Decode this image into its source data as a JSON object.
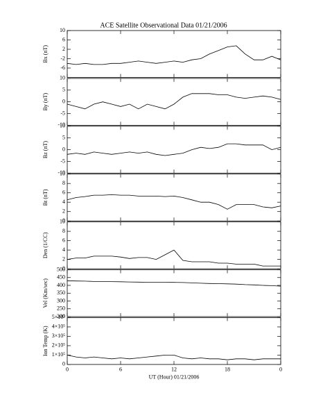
{
  "chart_data": [
    {
      "type": "line",
      "title": "ACE Satellite Observational Data   01/21/2006",
      "ylabel": "Bx (nT)",
      "color": "#000000",
      "x": [
        0,
        1,
        2,
        3,
        4,
        5,
        6,
        7,
        8,
        9,
        10,
        11,
        12,
        13,
        14,
        15,
        16,
        17,
        18,
        19,
        20,
        21,
        22,
        23,
        24
      ],
      "xlim": [
        0,
        24
      ],
      "values": [
        -4,
        -4.5,
        -4,
        -4.5,
        -4.5,
        -4,
        -4,
        -3.5,
        -3,
        -3.5,
        -4,
        -3.5,
        -3,
        -3.5,
        -2.5,
        -2,
        0,
        1.5,
        3,
        3.5,
        0,
        -2.5,
        -2.5,
        -1,
        -2.5
      ],
      "ylim": [
        -10,
        10
      ],
      "yticks": [
        -6,
        -2,
        2,
        6,
        10
      ]
    },
    {
      "type": "line",
      "ylabel": "By (nT)",
      "color": "#000000",
      "x": [
        0,
        1,
        2,
        3,
        4,
        5,
        6,
        7,
        8,
        9,
        10,
        11,
        12,
        13,
        14,
        15,
        16,
        17,
        18,
        19,
        20,
        21,
        22,
        23,
        24
      ],
      "xlim": [
        0,
        24
      ],
      "values": [
        -1,
        -2,
        -3,
        -1,
        0,
        -1,
        -2,
        -1,
        -3,
        -1,
        -2,
        -3,
        -1,
        2,
        3.5,
        3.5,
        3.5,
        3,
        3,
        2,
        1.5,
        2,
        2.5,
        2,
        1
      ],
      "ylim": [
        -10,
        10
      ],
      "yticks": [
        -10,
        -5,
        0,
        5,
        10
      ]
    },
    {
      "type": "line",
      "ylabel": "Bz (nT)",
      "color": "#000000",
      "x": [
        0,
        1,
        2,
        3,
        4,
        5,
        6,
        7,
        8,
        9,
        10,
        11,
        12,
        13,
        14,
        15,
        16,
        17,
        18,
        19,
        20,
        21,
        22,
        23,
        24
      ],
      "xlim": [
        0,
        24
      ],
      "values": [
        -2,
        -1.5,
        -2,
        -1,
        -1.5,
        -2,
        -1.5,
        -1,
        -1.5,
        -1,
        -2,
        -2.5,
        -2,
        -1.5,
        0,
        1,
        0.5,
        1,
        2.5,
        2.5,
        2,
        2,
        2,
        0,
        1
      ],
      "ylim": [
        -10,
        10
      ],
      "yticks": [
        -10,
        -5,
        0,
        5,
        10
      ]
    },
    {
      "type": "line",
      "ylabel": "Bt (nT)",
      "color": "#000000",
      "x": [
        0,
        1,
        2,
        3,
        4,
        5,
        6,
        7,
        8,
        9,
        10,
        11,
        12,
        13,
        14,
        15,
        16,
        17,
        18,
        19,
        20,
        21,
        22,
        23,
        24
      ],
      "xlim": [
        0,
        24
      ],
      "values": [
        4.5,
        5,
        5.2,
        5.5,
        5.5,
        5.6,
        5.5,
        5.5,
        5.3,
        5.3,
        5.3,
        5.2,
        5.3,
        5,
        4.5,
        4,
        4,
        3.5,
        2.5,
        3.5,
        3.5,
        3.5,
        3,
        2.8,
        3.2
      ],
      "ylim": [
        0,
        10
      ],
      "yticks": [
        0,
        2,
        4,
        6,
        8,
        10
      ]
    },
    {
      "type": "line",
      "ylabel": "Den (1/CC)",
      "color": "#000000",
      "x": [
        0,
        1,
        2,
        3,
        4,
        5,
        6,
        7,
        8,
        9,
        10,
        11,
        12,
        13,
        14,
        15,
        16,
        17,
        18,
        19,
        20,
        21,
        22,
        23,
        24
      ],
      "xlim": [
        0,
        24
      ],
      "values": [
        2,
        2.3,
        2.3,
        2.7,
        2.7,
        2.7,
        2.5,
        2.2,
        2.4,
        2.4,
        2,
        3,
        4,
        1.8,
        1.5,
        1.5,
        1.5,
        1.2,
        1.2,
        1,
        1,
        1,
        0.6,
        0.6,
        0.6
      ],
      "ylim": [
        0,
        10
      ],
      "yticks": [
        0,
        2,
        4,
        6,
        8,
        10
      ]
    },
    {
      "type": "line",
      "ylabel": "Vel (Km/sec)",
      "color": "#000000",
      "x": [
        0,
        1,
        2,
        3,
        4,
        5,
        6,
        7,
        8,
        9,
        10,
        11,
        12,
        13,
        14,
        15,
        16,
        17,
        18,
        19,
        20,
        21,
        22,
        23,
        24
      ],
      "xlim": [
        0,
        24
      ],
      "values": [
        430,
        428,
        427,
        425,
        425,
        424,
        423,
        422,
        421,
        420,
        420,
        420,
        419,
        418,
        416,
        414,
        412,
        411,
        410,
        408,
        405,
        403,
        400,
        398,
        395
      ],
      "ylim": [
        200,
        500
      ],
      "yticks": [
        200,
        250,
        300,
        350,
        400,
        450,
        500
      ]
    },
    {
      "type": "line",
      "ylabel": "Ion Temp (K)",
      "xlabel": "UT (Hour)   01/21/2006",
      "color": "#000000",
      "x": [
        0,
        1,
        2,
        3,
        4,
        5,
        6,
        7,
        8,
        9,
        10,
        11,
        12,
        13,
        14,
        15,
        16,
        17,
        18,
        19,
        20,
        21,
        22,
        23,
        24
      ],
      "xlim": [
        0,
        24
      ],
      "values": [
        100000,
        80000,
        70000,
        80000,
        70000,
        60000,
        70000,
        60000,
        70000,
        80000,
        90000,
        100000,
        100000,
        70000,
        60000,
        70000,
        60000,
        60000,
        50000,
        60000,
        60000,
        50000,
        60000,
        60000,
        60000
      ],
      "ylim": [
        0,
        500000
      ],
      "yticks": [
        0,
        {
          "value": 100000,
          "label": "1×10⁵"
        },
        {
          "value": 200000,
          "label": "2×10⁵"
        },
        {
          "value": 300000,
          "label": "3×10⁵"
        },
        {
          "value": 400000,
          "label": "4×10⁵"
        },
        {
          "value": 500000,
          "label": "5×10⁵"
        }
      ],
      "xticks": [
        0,
        6,
        12,
        18,
        {
          "value": 24,
          "label": "0"
        }
      ]
    }
  ]
}
